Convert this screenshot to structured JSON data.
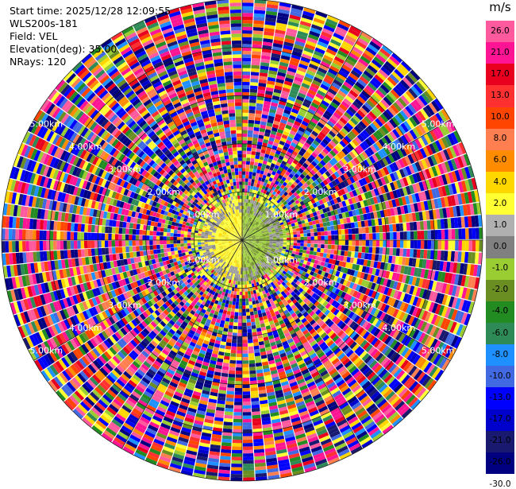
{
  "info": {
    "start_time": "Start time: 2025/12/28 12:09:55",
    "site": "WLS200s-181",
    "field": "Field: VEL",
    "elevation": "Elevation(deg): 35.00",
    "nrays": "NRays: 120"
  },
  "colorbar": {
    "unit": "m/s",
    "levels": [
      "26.0",
      "21.0",
      "17.0",
      "13.0",
      "10.0",
      "8.0",
      "6.0",
      "4.0",
      "2.0",
      "1.0",
      "0.0",
      "-1.0",
      "-2.0",
      "-4.0",
      "-6.0",
      "-8.0",
      "-10.0",
      "-13.0",
      "-17.0",
      "-21.0",
      "-26.0",
      "-30.0"
    ],
    "colors": [
      "#ff5a9e",
      "#ff1493",
      "#e8001e",
      "#ff3030",
      "#ff4500",
      "#ff7f50",
      "#ff8c00",
      "#ffd700",
      "#ffff33",
      "#b0b0b0",
      "#808080",
      "#9acd32",
      "#6b8e23",
      "#228b22",
      "#2e8b57",
      "#1e90ff",
      "#4169e1",
      "#0000ff",
      "#0000cd",
      "#191970",
      "#000080"
    ]
  },
  "chart_data": {
    "type": "ppi",
    "field": "VEL",
    "nrays": 120,
    "elevation_deg": 35.0,
    "units": "m/s",
    "range_ring_labels": [
      "1.00km",
      "2.00km",
      "3.00km",
      "4.00km",
      "5.00km"
    ],
    "range_rings_km": [
      1,
      2,
      3,
      4,
      5
    ],
    "inner_zone_km": 0.6
  }
}
